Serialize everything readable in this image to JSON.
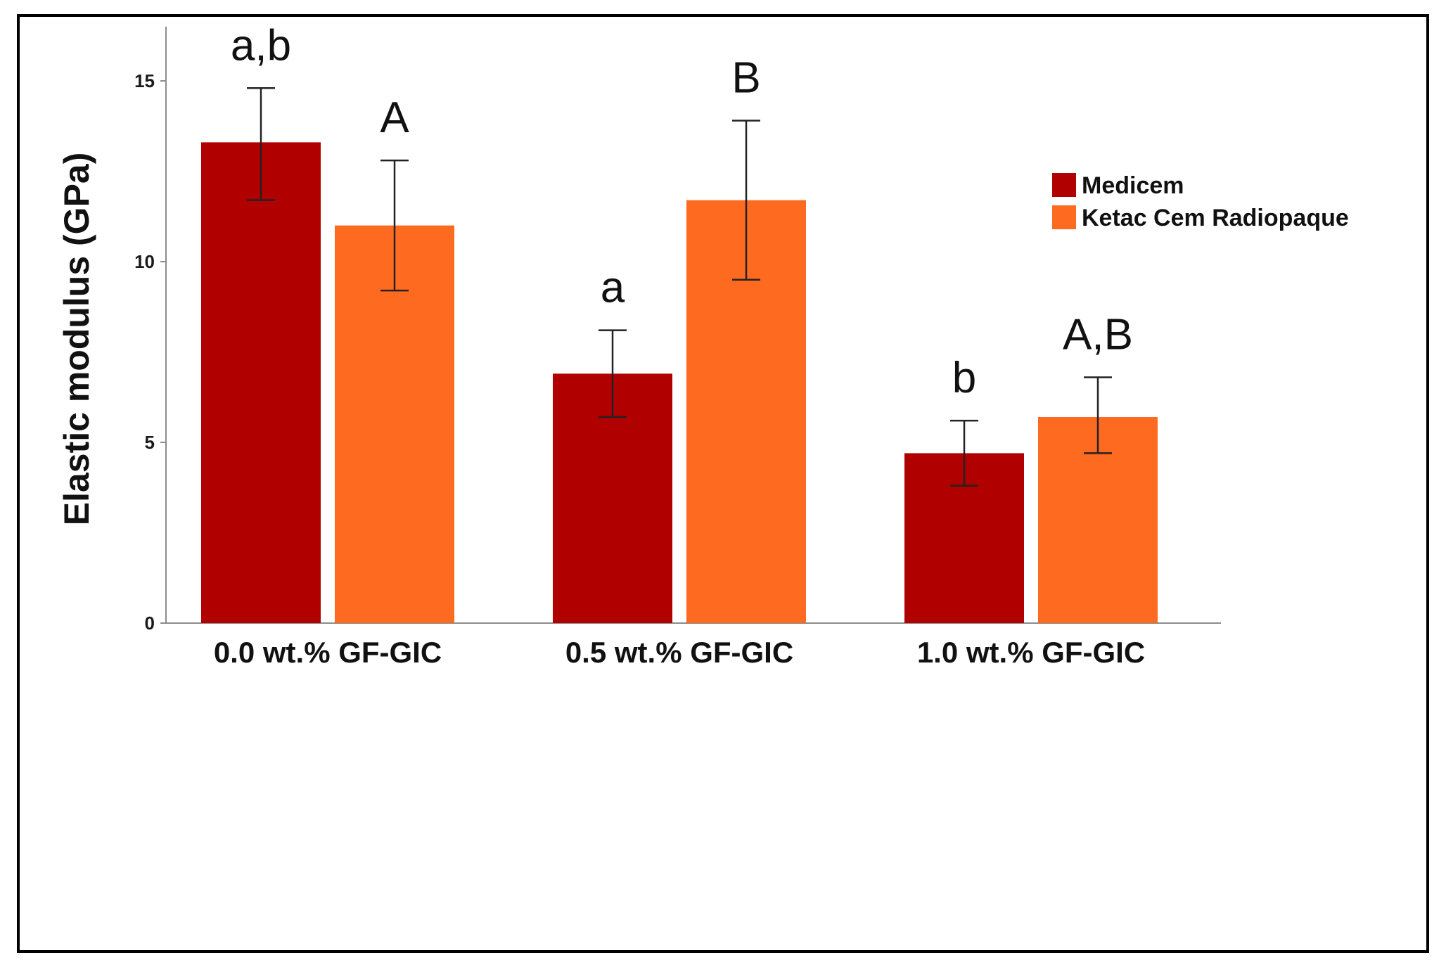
{
  "chart_data": {
    "type": "bar",
    "categories": [
      "0.0 wt.% GF-GIC",
      "0.5 wt.% GF-GIC",
      "1.0 wt.% GF-GIC"
    ],
    "series": [
      {
        "name": "Medicem",
        "color": "#b00000",
        "values": [
          13.3,
          6.9,
          4.7
        ],
        "error_low": [
          11.7,
          5.7,
          3.8
        ],
        "error_high": [
          14.8,
          8.1,
          5.6
        ],
        "labels": [
          "a,b",
          "a",
          "b"
        ]
      },
      {
        "name": "Ketac Cem Radiopaque",
        "color": "#ff6a21",
        "values": [
          11.0,
          11.7,
          5.7
        ],
        "error_low": [
          9.2,
          9.5,
          4.7
        ],
        "error_high": [
          12.8,
          13.9,
          6.8
        ],
        "labels": [
          "A",
          "B",
          "A,B"
        ]
      }
    ],
    "ylabel": "Elastic modulus (GPa)",
    "xlabel": "",
    "ylim": [
      0,
      16.5
    ],
    "yticks": [
      0,
      5,
      10,
      15
    ],
    "grid": false,
    "legend_position": "top-right"
  }
}
